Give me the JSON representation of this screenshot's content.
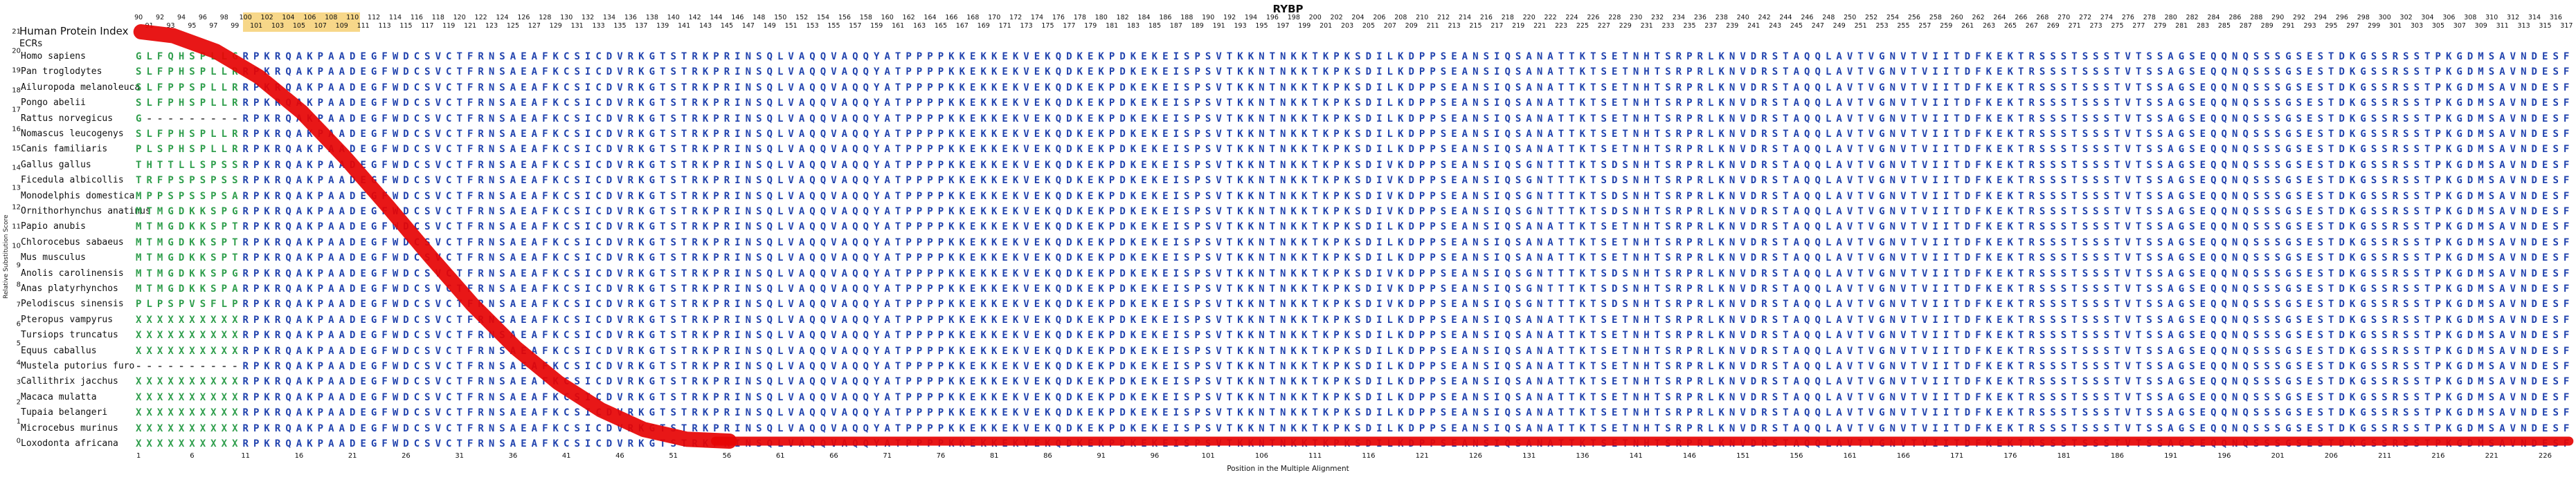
{
  "title": "RYBP",
  "header": {
    "index_label": "Human Protein Index",
    "ecrs_label": "ECRs"
  },
  "axes": {
    "y_label": "Relative Substitution Score",
    "y_max": 21,
    "y_min": 0,
    "x_label": "Position in the Multiple Alignment",
    "x_tick_start": 1,
    "x_tick_step": 5,
    "x_tick_last": 226,
    "top_position_start": 90,
    "top_position_end": 317
  },
  "colors": {
    "conserved_residue": "#2143ae",
    "variable_residue": "#2f9e4c",
    "gap": "#666666",
    "score_curve": "#e60505",
    "highlight": "#f2bc3a"
  },
  "highlight_region": {
    "start_position": 100,
    "end_position": 110
  },
  "alignment": {
    "core_main": "RPKRQAKPAADEGFWDCSVCTFRNSAEAFKCSICDVRKGTSTRKPRINSQLVAQQVAQQYATPPPPKKEKKEKVEKQDKEKPDKEKEISPSVTKKNTNKKTKPKSDILKDPPSEANSIQSANATTKTSETNHTSRPRLKNVDRSTAQQLAVTVGNVTVIITDFKEKTRSSSTSSSTVTSSAGSEQQNQSSSGSESTDKGSSRSSTPKGDMSAVNDESF",
    "core_alt": "RPKRQAKPAADEGFWDCSVCTFRNSAEAFKCSICDVRKGTSTRKPRINSQLVAQQVAQQYATPPPPKKEKKEKVEKQDKEKPDKEKEISPSVTKKNTNKKTKPKSDIVKDPPSEANSIQSGNTTTKTSDSNHTSRPRLKNVDRSTAQQLAVTVGNVTVIITDFKEKTRSSSTSSSTVTSSAGSEQQNQSSSGSESTDKGSSRSSTPKGDMSAVNDESF",
    "species": [
      {
        "name": "Homo sapiens",
        "prefix": "GLFQHSPLLG",
        "core": "main"
      },
      {
        "name": "Pan troglodytes",
        "prefix": "SLFPHSPLLR",
        "core": "main"
      },
      {
        "name": "Ailuropoda melanoleuca",
        "prefix": "SLFPPSPLLR",
        "core": "main"
      },
      {
        "name": "Pongo abelii",
        "prefix": "SLFPHSPLLR",
        "core": "main"
      },
      {
        "name": "Rattus norvegicus",
        "prefix": "G---------",
        "core": "main"
      },
      {
        "name": "Nomascus leucogenys",
        "prefix": "SLFPHSPLLR",
        "core": "main"
      },
      {
        "name": "Canis familiaris",
        "prefix": "PLSPHSPLLR",
        "core": "main"
      },
      {
        "name": "Gallus gallus",
        "prefix": "THTTLLSPSS",
        "core": "alt"
      },
      {
        "name": "Ficedula albicollis",
        "prefix": "TRFPSPSPSS",
        "core": "alt"
      },
      {
        "name": "Monodelphis domestica",
        "prefix": "MPPSPSSPSA",
        "core": "alt"
      },
      {
        "name": "Ornithorhynchus anatinus",
        "prefix": "MTMGDKKSPG",
        "core": "alt"
      },
      {
        "name": "Papio anubis",
        "prefix": "MTMGDKKSPT",
        "core": "main"
      },
      {
        "name": "Chlorocebus sabaeus",
        "prefix": "MTMGDKKSPT",
        "core": "main"
      },
      {
        "name": "Mus musculus",
        "prefix": "MTMGDKKSPT",
        "core": "main"
      },
      {
        "name": "Anolis carolinensis",
        "prefix": "MTMGDKKSPG",
        "core": "alt"
      },
      {
        "name": "Anas platyrhynchos",
        "prefix": "MTMGDKKSPA",
        "core": "alt"
      },
      {
        "name": "Pelodiscus sinensis",
        "prefix": "PLPSPVSFLP",
        "core": "alt"
      },
      {
        "name": "Pteropus vampyrus",
        "prefix": "XXXXXXXXXX",
        "core": "main"
      },
      {
        "name": "Tursiops truncatus",
        "prefix": "XXXXXXXXXX",
        "core": "main"
      },
      {
        "name": "Equus caballus",
        "prefix": "XXXXXXXXXX",
        "core": "main"
      },
      {
        "name": "Mustela putorius furo",
        "prefix": "----------",
        "core": "main"
      },
      {
        "name": "Callithrix jacchus",
        "prefix": "XXXXXXXXXX",
        "core": "main"
      },
      {
        "name": "Macaca mulatta",
        "prefix": "XXXXXXXXXX",
        "core": "main"
      },
      {
        "name": "Tupaia belangeri",
        "prefix": "XXXXXXXXXX",
        "core": "main"
      },
      {
        "name": "Microcebus murinus",
        "prefix": "XXXXXXXXXX",
        "core": "main"
      },
      {
        "name": "Loxodonta africana",
        "prefix": "XXXXXXXXXX",
        "core": "main"
      }
    ]
  },
  "chart_data": {
    "type": "table",
    "title": "RYBP",
    "xlabel": "Position in the Multiple Alignment",
    "ylabel": "Relative Substitution Score",
    "x_range": [
      1,
      228
    ],
    "top_position_range": [
      90,
      317
    ],
    "y_range": [
      0,
      21
    ],
    "n_alignment_rows": 26,
    "score_curve_points": [
      [
        1,
        21
      ],
      [
        4,
        20.8
      ],
      [
        8,
        20
      ],
      [
        12,
        18.7
      ],
      [
        16,
        16.9
      ],
      [
        20,
        14.6
      ],
      [
        24,
        12.1
      ],
      [
        28,
        9.5
      ],
      [
        32,
        7
      ],
      [
        36,
        4.8
      ],
      [
        40,
        3
      ],
      [
        44,
        1.6
      ],
      [
        48,
        0.6
      ],
      [
        52,
        0.1
      ],
      [
        56,
        0
      ],
      [
        228,
        0
      ]
    ]
  }
}
